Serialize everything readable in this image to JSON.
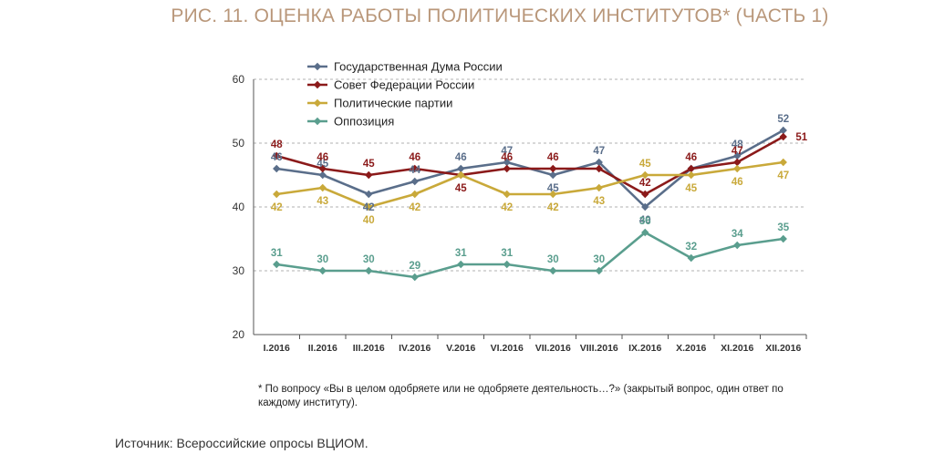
{
  "title": "РИС. 11. ОЦЕНКА РАБОТЫ ПОЛИТИЧЕСКИХ ИНСТИТУТОВ* (ЧАСТЬ 1)",
  "footnote": "* По вопросу «Вы в целом одобряете или не одобряете деятельность…?» (закрытый вопрос, один ответ по каждому институту).",
  "source": "Источник: Всероссийские опросы ВЦИОМ.",
  "chart_data": {
    "type": "line",
    "title": "РИС. 11. ОЦЕНКА РАБОТЫ ПОЛИТИЧЕСКИХ ИНСТИТУТОВ* (ЧАСТЬ 1)",
    "xlabel": "",
    "ylabel": "",
    "ylim": [
      20,
      60
    ],
    "yticks": [
      20,
      30,
      40,
      50,
      60
    ],
    "grid": true,
    "legend": "top-left",
    "categories": [
      "I.2016",
      "II.2016",
      "III.2016",
      "IV.2016",
      "V.2016",
      "VI.2016",
      "VII.2016",
      "VIII.2016",
      "IX.2016",
      "X.2016",
      "XI.2016",
      "XII.2016"
    ],
    "series": [
      {
        "name": "Государственная Дума России",
        "color": "#5a6e8a",
        "values": [
          46,
          45,
          42,
          44,
          46,
          47,
          45,
          47,
          40,
          46,
          48,
          52
        ],
        "labels": [
          "46",
          "45",
          "42",
          "44",
          "46",
          "47",
          "45",
          "47",
          "40",
          "",
          "48",
          "52"
        ]
      },
      {
        "name": "Совет Федерации России",
        "color": "#8b1a1a",
        "values": [
          48,
          46,
          45,
          46,
          45,
          46,
          46,
          46,
          42,
          46,
          47,
          51
        ],
        "labels": [
          "48",
          "46",
          "45",
          "46",
          "45",
          "46",
          "46",
          "",
          "42",
          "46",
          "47",
          "51"
        ]
      },
      {
        "name": "Политические партии",
        "color": "#c9a93a",
        "values": [
          42,
          43,
          40,
          42,
          45,
          42,
          42,
          43,
          45,
          45,
          46,
          47
        ],
        "labels": [
          "42",
          "43",
          "40",
          "42",
          "",
          "42",
          "42",
          "43",
          "45",
          "45",
          "46",
          "47"
        ]
      },
      {
        "name": "Оппозиция",
        "color": "#5a9e8e",
        "values": [
          31,
          30,
          30,
          29,
          31,
          31,
          30,
          30,
          36,
          32,
          34,
          35
        ],
        "labels": [
          "31",
          "30",
          "30",
          "29",
          "31",
          "31",
          "30",
          "30",
          "36",
          "32",
          "34",
          "35"
        ]
      }
    ]
  }
}
